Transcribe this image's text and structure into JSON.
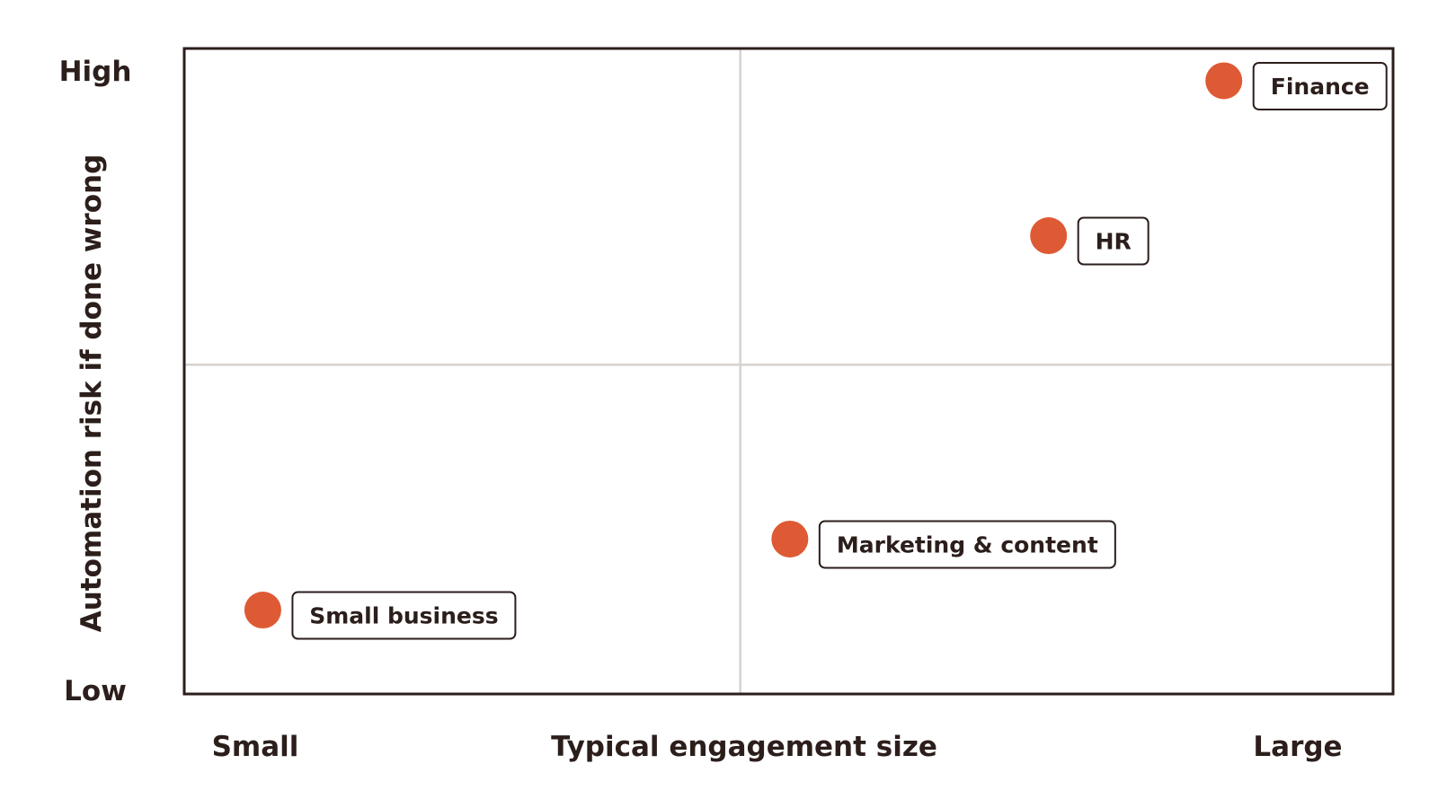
{
  "chart_data": {
    "type": "scatter",
    "title": "",
    "xlabel": "Typical engagement size",
    "ylabel": "Automation risk if done wrong",
    "x_min_label": "Small",
    "x_max_label": "Large",
    "y_min_label": "Low",
    "y_max_label": "High",
    "xlim": [
      0,
      1
    ],
    "ylim": [
      0,
      1
    ],
    "quadrant_split": {
      "x": 0.46,
      "y": 0.51
    },
    "grid": false,
    "points": [
      {
        "label": "Finance",
        "x": 0.86,
        "y": 0.95
      },
      {
        "label": "HR",
        "x": 0.715,
        "y": 0.71
      },
      {
        "label": "Marketing & content",
        "x": 0.501,
        "y": 0.24
      },
      {
        "label": "Small business",
        "x": 0.065,
        "y": 0.13
      }
    ]
  },
  "colors": {
    "point": "#de5a34",
    "frame": "#2b1e1b",
    "divider": "#d7d2ce",
    "text": "#2b1e1b",
    "label_box_border": "#2b1e1b",
    "label_box_fill": "#ffffff"
  }
}
